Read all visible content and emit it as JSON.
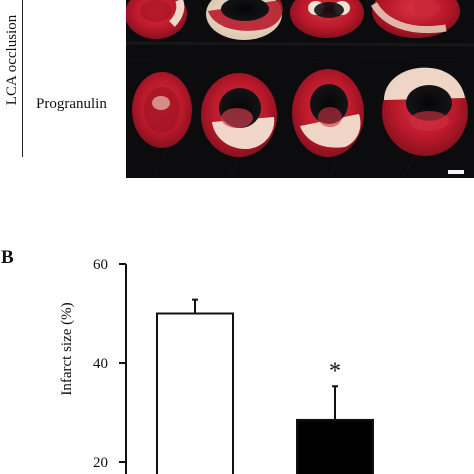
{
  "panel_a": {
    "group_label": "LCA occlusion",
    "row_label": "Progranulin"
  },
  "panel_b": {
    "panel_label": "B"
  },
  "chart_data": {
    "type": "bar",
    "title": "",
    "xlabel": "",
    "ylabel": "Infarct size (%)",
    "ylim": [
      20,
      60
    ],
    "yticks": [
      20,
      40,
      60
    ],
    "categories": [
      "",
      ""
    ],
    "values": [
      50,
      28.5
    ],
    "errors": [
      2.8,
      6.8
    ],
    "fills": [
      "#ffffff",
      "#000000"
    ],
    "annotations": [
      "",
      "*"
    ],
    "grid": false
  }
}
